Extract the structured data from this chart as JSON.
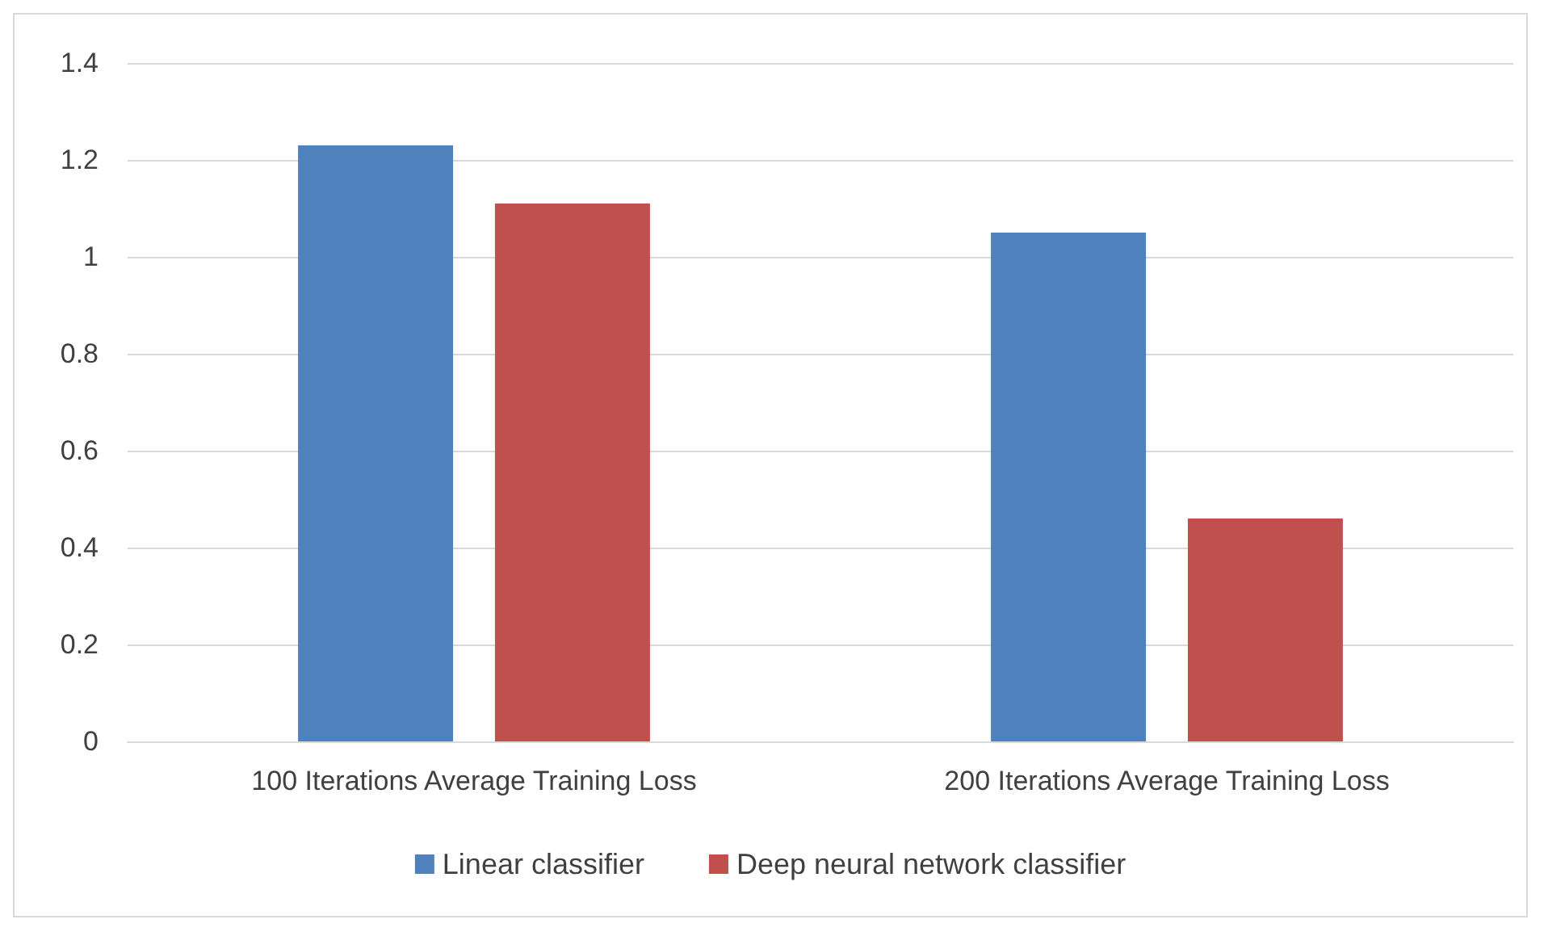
{
  "chart_data": {
    "type": "bar",
    "categories": [
      "100 Iterations Average Training Loss",
      "200 Iterations Average Training Loss"
    ],
    "series": [
      {
        "name": "Linear classifier",
        "color": "#4f81bd",
        "values": [
          1.23,
          1.05
        ]
      },
      {
        "name": "Deep neural network classifier",
        "color": "#c0504d",
        "values": [
          1.11,
          0.46
        ]
      }
    ],
    "ylim": [
      0,
      1.4
    ],
    "yticks": [
      0,
      0.2,
      0.4,
      0.6,
      0.8,
      1,
      1.2,
      1.4
    ],
    "grid": "y",
    "legend": "bottom"
  }
}
